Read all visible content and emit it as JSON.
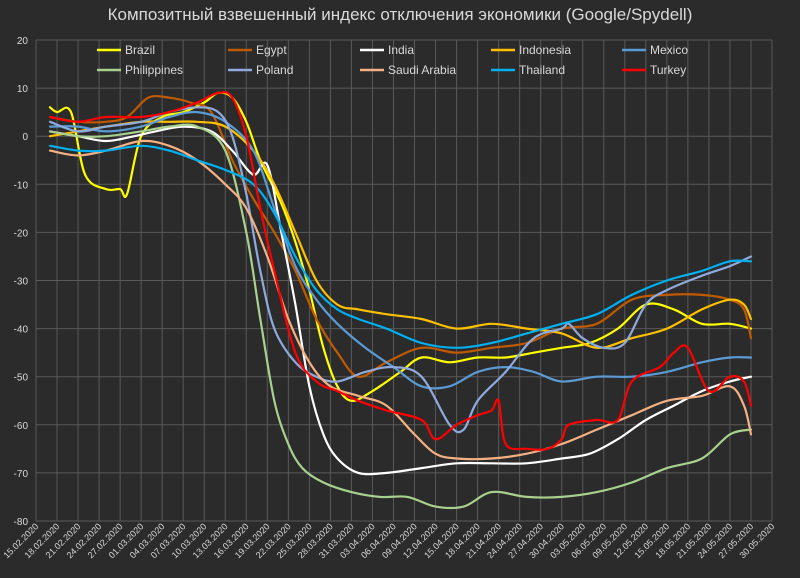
{
  "chart_data": {
    "type": "line",
    "title": "Композитный взвешенный индекс отключения экономики (Google/Spydell)",
    "ylim": [
      -80,
      20
    ],
    "yticks": [
      20,
      10,
      0,
      -10,
      -20,
      -30,
      -40,
      -50,
      -60,
      -70,
      -80
    ],
    "xlim": [
      "2020-02-15",
      "2020-05-30"
    ],
    "xtick_labels": [
      "15.02.2020",
      "18.02.2020",
      "21.02.2020",
      "24.02.2020",
      "27.02.2020",
      "01.03.2020",
      "04.03.2020",
      "07.03.2020",
      "10.03.2020",
      "13.03.2020",
      "16.03.2020",
      "19.03.2020",
      "22.03.2020",
      "25.03.2020",
      "28.03.2020",
      "31.03.2020",
      "03.04.2020",
      "06.04.2020",
      "09.04.2020",
      "12.04.2020",
      "15.04.2020",
      "18.04.2020",
      "21.04.2020",
      "24.04.2020",
      "27.04.2020",
      "30.04.2020",
      "03.05.2020",
      "06.05.2020",
      "09.05.2020",
      "12.05.2020",
      "15.05.2020",
      "18.05.2020",
      "21.05.2020",
      "24.05.2020",
      "27.05.2020",
      "30.05.2020"
    ],
    "grid": true,
    "legend_position": "top",
    "series": [
      {
        "name": "Brazil",
        "color": "#ffff00",
        "x": [
          "2020-02-17",
          "2020-02-18",
          "2020-02-20",
          "2020-02-22",
          "2020-02-25",
          "2020-02-27",
          "2020-02-28",
          "2020-03-01",
          "2020-03-04",
          "2020-03-07",
          "2020-03-10",
          "2020-03-12",
          "2020-03-14",
          "2020-03-16",
          "2020-03-18",
          "2020-03-21",
          "2020-03-23",
          "2020-03-25",
          "2020-03-27",
          "2020-03-29",
          "2020-03-31",
          "2020-04-03",
          "2020-04-07",
          "2020-04-10",
          "2020-04-14",
          "2020-04-18",
          "2020-04-22",
          "2020-04-26",
          "2020-04-30",
          "2020-05-04",
          "2020-05-08",
          "2020-05-12",
          "2020-05-16",
          "2020-05-20",
          "2020-05-24",
          "2020-05-27"
        ],
        "y": [
          6,
          5,
          5,
          -8,
          -11,
          -11,
          -12,
          0,
          4,
          5,
          7,
          9,
          8,
          3,
          -5,
          -14,
          -22,
          -32,
          -44,
          -52,
          -55,
          -53,
          -49,
          -46,
          -47,
          -46,
          -46,
          -45,
          -44,
          -43,
          -40,
          -35,
          -36,
          -39,
          -39,
          -40
        ]
      },
      {
        "name": "Egypt",
        "color": "#c05a00",
        "x": [
          "2020-02-17",
          "2020-02-21",
          "2020-02-25",
          "2020-02-28",
          "2020-03-02",
          "2020-03-05",
          "2020-03-08",
          "2020-03-11",
          "2020-03-14",
          "2020-03-17",
          "2020-03-20",
          "2020-03-23",
          "2020-03-26",
          "2020-03-29",
          "2020-04-01",
          "2020-04-05",
          "2020-04-10",
          "2020-04-15",
          "2020-04-20",
          "2020-04-25",
          "2020-04-30",
          "2020-05-05",
          "2020-05-10",
          "2020-05-15",
          "2020-05-20",
          "2020-05-24",
          "2020-05-26",
          "2020-05-27"
        ],
        "y": [
          4,
          3,
          3,
          4,
          8,
          8,
          7,
          5,
          -5,
          -13,
          -20,
          -28,
          -38,
          -45,
          -50,
          -47,
          -44,
          -45,
          -44,
          -43,
          -40,
          -39,
          -34,
          -33,
          -33,
          -34,
          -36,
          -42
        ]
      },
      {
        "name": "India",
        "color": "#ffffff",
        "x": [
          "2020-02-17",
          "2020-02-21",
          "2020-02-25",
          "2020-02-29",
          "2020-03-03",
          "2020-03-07",
          "2020-03-11",
          "2020-03-14",
          "2020-03-17",
          "2020-03-19",
          "2020-03-21",
          "2020-03-23",
          "2020-03-25",
          "2020-03-27",
          "2020-03-29",
          "2020-04-01",
          "2020-04-05",
          "2020-04-10",
          "2020-04-15",
          "2020-04-20",
          "2020-04-25",
          "2020-04-30",
          "2020-05-04",
          "2020-05-08",
          "2020-05-12",
          "2020-05-16",
          "2020-05-20",
          "2020-05-24",
          "2020-05-27"
        ],
        "y": [
          1,
          0,
          -1,
          0,
          1,
          2,
          1,
          -3,
          -8,
          -6,
          -20,
          -35,
          -52,
          -62,
          -67,
          -70,
          -70,
          -69,
          -68,
          -68,
          -68,
          -67,
          -66,
          -63,
          -59,
          -56,
          -53,
          -51,
          -50
        ]
      },
      {
        "name": "Indonesia",
        "color": "#ffc000",
        "x": [
          "2020-02-17",
          "2020-02-21",
          "2020-02-25",
          "2020-03-01",
          "2020-03-05",
          "2020-03-09",
          "2020-03-13",
          "2020-03-17",
          "2020-03-20",
          "2020-03-23",
          "2020-03-26",
          "2020-03-29",
          "2020-04-01",
          "2020-04-05",
          "2020-04-10",
          "2020-04-15",
          "2020-04-20",
          "2020-04-25",
          "2020-04-30",
          "2020-05-05",
          "2020-05-10",
          "2020-05-15",
          "2020-05-20",
          "2020-05-24",
          "2020-05-26",
          "2020-05-27"
        ],
        "y": [
          0,
          1,
          2,
          3,
          3,
          3,
          2,
          -3,
          -10,
          -20,
          -30,
          -35,
          -36,
          -37,
          -38,
          -40,
          -39,
          -40,
          -41,
          -44,
          -42,
          -40,
          -36,
          -34,
          -35,
          -38
        ]
      },
      {
        "name": "Mexico",
        "color": "#5b9bd5",
        "x": [
          "2020-02-17",
          "2020-02-21",
          "2020-02-25",
          "2020-03-01",
          "2020-03-05",
          "2020-03-09",
          "2020-03-13",
          "2020-03-17",
          "2020-03-20",
          "2020-03-23",
          "2020-03-26",
          "2020-03-29",
          "2020-04-02",
          "2020-04-06",
          "2020-04-10",
          "2020-04-14",
          "2020-04-18",
          "2020-04-22",
          "2020-04-26",
          "2020-04-30",
          "2020-05-05",
          "2020-05-10",
          "2020-05-15",
          "2020-05-20",
          "2020-05-24",
          "2020-05-27"
        ],
        "y": [
          2,
          2,
          1,
          2,
          4,
          5,
          3,
          -3,
          -15,
          -27,
          -34,
          -39,
          -44,
          -48,
          -52,
          -52,
          -49,
          -48,
          -49,
          -51,
          -50,
          -50,
          -49,
          -47,
          -46,
          -46
        ]
      },
      {
        "name": "Philippines",
        "color": "#a9d18e",
        "x": [
          "2020-02-17",
          "2020-02-21",
          "2020-02-25",
          "2020-03-01",
          "2020-03-05",
          "2020-03-09",
          "2020-03-13",
          "2020-03-16",
          "2020-03-18",
          "2020-03-20",
          "2020-03-22",
          "2020-03-24",
          "2020-03-27",
          "2020-03-31",
          "2020-04-04",
          "2020-04-08",
          "2020-04-12",
          "2020-04-16",
          "2020-04-20",
          "2020-04-25",
          "2020-04-30",
          "2020-05-05",
          "2020-05-10",
          "2020-05-15",
          "2020-05-20",
          "2020-05-24",
          "2020-05-27"
        ],
        "y": [
          1,
          0,
          0,
          1,
          2,
          2,
          -3,
          -20,
          -38,
          -55,
          -64,
          -69,
          -72,
          -74,
          -75,
          -75,
          -77,
          -77,
          -74,
          -75,
          -75,
          -74,
          -72,
          -69,
          -67,
          -62,
          -61
        ]
      },
      {
        "name": "Poland",
        "color": "#8faadc",
        "x": [
          "2020-02-17",
          "2020-02-21",
          "2020-02-25",
          "2020-03-01",
          "2020-03-05",
          "2020-03-09",
          "2020-03-12",
          "2020-03-14",
          "2020-03-16",
          "2020-03-18",
          "2020-03-20",
          "2020-03-23",
          "2020-03-26",
          "2020-03-29",
          "2020-04-02",
          "2020-04-06",
          "2020-04-10",
          "2020-04-14",
          "2020-04-16",
          "2020-04-18",
          "2020-04-22",
          "2020-04-26",
          "2020-04-30",
          "2020-05-01",
          "2020-05-03",
          "2020-05-06",
          "2020-05-09",
          "2020-05-12",
          "2020-05-15",
          "2020-05-20",
          "2020-05-24",
          "2020-05-27"
        ],
        "y": [
          3,
          1,
          2,
          3,
          5,
          6,
          5,
          0,
          -12,
          -28,
          -40,
          -47,
          -50,
          -51,
          -49,
          -48,
          -50,
          -60,
          -61,
          -55,
          -49,
          -42,
          -40,
          -39,
          -42,
          -44,
          -43,
          -35,
          -32,
          -29,
          -27,
          -25
        ]
      },
      {
        "name": "Saudi Arabia",
        "color": "#f4b183",
        "x": [
          "2020-02-17",
          "2020-02-21",
          "2020-02-25",
          "2020-03-01",
          "2020-03-05",
          "2020-03-09",
          "2020-03-13",
          "2020-03-16",
          "2020-03-19",
          "2020-03-22",
          "2020-03-25",
          "2020-03-28",
          "2020-04-01",
          "2020-04-05",
          "2020-04-09",
          "2020-04-12",
          "2020-04-15",
          "2020-04-20",
          "2020-04-25",
          "2020-04-30",
          "2020-05-05",
          "2020-05-10",
          "2020-05-15",
          "2020-05-20",
          "2020-05-24",
          "2020-05-26",
          "2020-05-27"
        ],
        "y": [
          -3,
          -4,
          -3,
          -1,
          -2,
          -5,
          -10,
          -15,
          -25,
          -38,
          -47,
          -52,
          -54,
          -56,
          -62,
          -66,
          -67,
          -67,
          -66,
          -64,
          -61,
          -58,
          -55,
          -54,
          -52,
          -56,
          -62
        ]
      },
      {
        "name": "Thailand",
        "color": "#00b0f0",
        "x": [
          "2020-02-17",
          "2020-02-21",
          "2020-02-25",
          "2020-03-01",
          "2020-03-05",
          "2020-03-09",
          "2020-03-13",
          "2020-03-17",
          "2020-03-20",
          "2020-03-23",
          "2020-03-26",
          "2020-03-29",
          "2020-04-01",
          "2020-04-05",
          "2020-04-10",
          "2020-04-15",
          "2020-04-20",
          "2020-04-25",
          "2020-04-30",
          "2020-05-05",
          "2020-05-10",
          "2020-05-15",
          "2020-05-20",
          "2020-05-24",
          "2020-05-27"
        ],
        "y": [
          -2,
          -3,
          -3,
          -2,
          -3,
          -5,
          -7,
          -10,
          -16,
          -25,
          -32,
          -36,
          -38,
          -40,
          -43,
          -44,
          -43,
          -41,
          -39,
          -37,
          -33,
          -30,
          -28,
          -26,
          -26
        ]
      },
      {
        "name": "Turkey",
        "color": "#ff0000",
        "x": [
          "2020-02-17",
          "2020-02-21",
          "2020-02-25",
          "2020-03-01",
          "2020-03-05",
          "2020-03-09",
          "2020-03-12",
          "2020-03-14",
          "2020-03-16",
          "2020-03-18",
          "2020-03-20",
          "2020-03-23",
          "2020-03-26",
          "2020-03-29",
          "2020-04-01",
          "2020-04-05",
          "2020-04-10",
          "2020-04-12",
          "2020-04-15",
          "2020-04-18",
          "2020-04-20",
          "2020-04-21",
          "2020-04-22",
          "2020-04-25",
          "2020-04-28",
          "2020-04-30",
          "2020-05-01",
          "2020-05-05",
          "2020-05-08",
          "2020-05-10",
          "2020-05-14",
          "2020-05-16",
          "2020-05-18",
          "2020-05-21",
          "2020-05-24",
          "2020-05-26",
          "2020-05-27"
        ],
        "y": [
          4,
          3,
          4,
          4,
          5,
          7,
          9,
          8,
          0,
          -15,
          -28,
          -45,
          -51,
          -53,
          -55,
          -57,
          -59,
          -63,
          -60,
          -58,
          -57,
          -55,
          -64,
          -65,
          -65,
          -63,
          -60,
          -59,
          -59,
          -51,
          -48,
          -45,
          -44,
          -53,
          -50,
          -51,
          -56
        ]
      }
    ]
  }
}
